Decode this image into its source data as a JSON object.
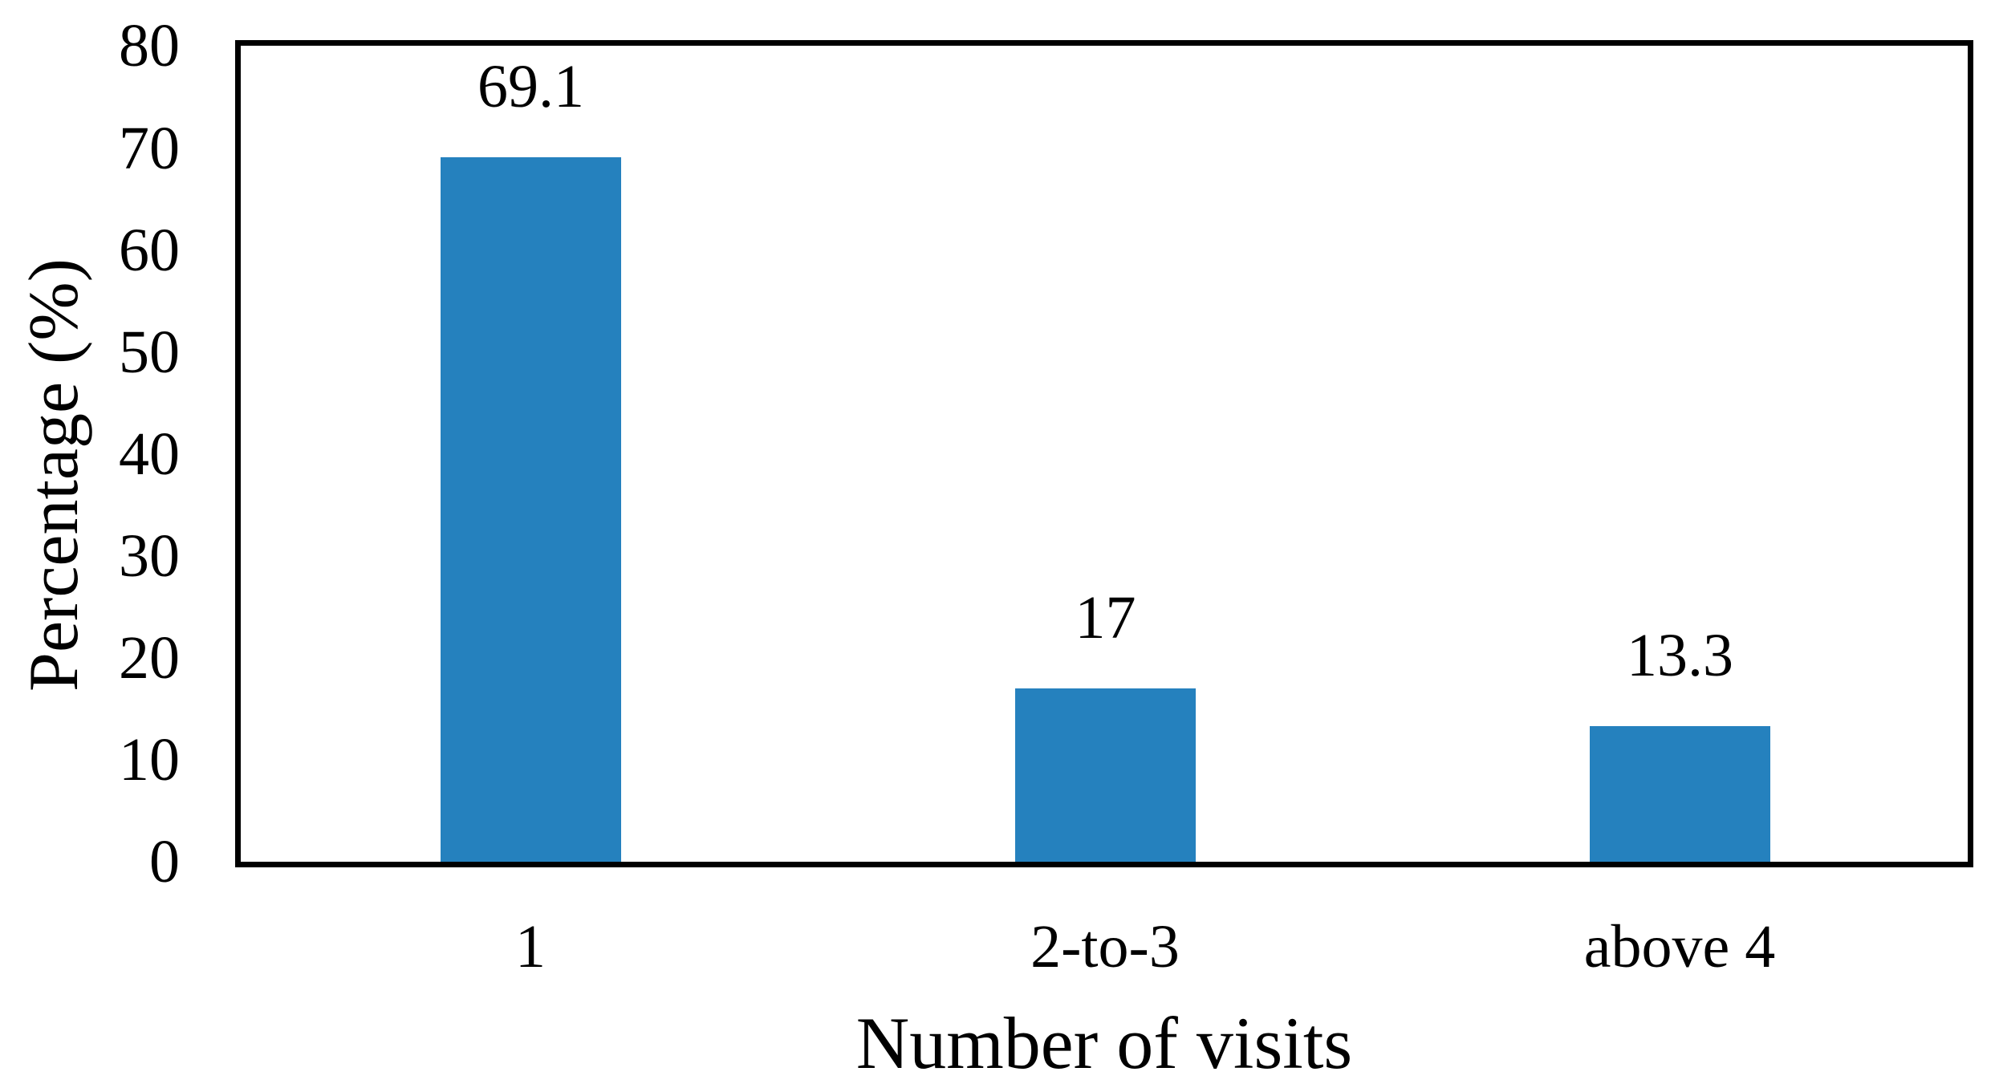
{
  "chart_data": {
    "type": "bar",
    "title": "",
    "xlabel": "Number of visits",
    "ylabel": "Percentage (%)",
    "categories": [
      "1",
      "2-to-3",
      "above 4"
    ],
    "values": [
      69.1,
      17,
      13.3
    ],
    "data_labels": [
      "69.1",
      "17",
      "13.3"
    ],
    "ylim": [
      0,
      80
    ],
    "ytick_step": 10,
    "yticks": [
      "80",
      "70",
      "60",
      "50",
      "40",
      "30",
      "20",
      "10",
      "0"
    ],
    "grid": false,
    "legend": "none",
    "plot_border": "full-box",
    "colors": {
      "bar_fill": "#2581BE",
      "axis": "#000000",
      "text": "#000000",
      "background": "#FFFFFF"
    }
  }
}
